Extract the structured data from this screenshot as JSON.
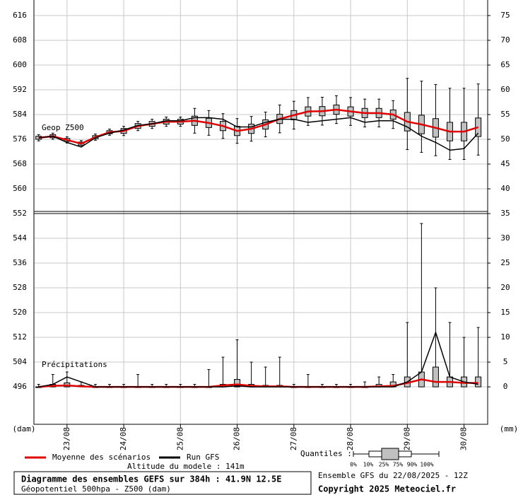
{
  "chart_data": {
    "type": "boxplot",
    "title": "Diagramme des ensembles GEFS sur 384h : 41.9N 12.5E",
    "subtitle": "Géopotentiel 500hpa - Z500 (dam)",
    "run": "Ensemble GFS du 22/08/2025 - 12Z",
    "copyright": "Copyright 2025 Meteociel.fr",
    "altitude": "Altitude du modele : 141m",
    "ylabel": "(dam)",
    "y2label": "(mm)",
    "panel_labels": [
      "Geop Z500",
      "Précipitations"
    ],
    "grid": true,
    "x": [
      0,
      6,
      12,
      18,
      24,
      30,
      36,
      42,
      48,
      54,
      60,
      66,
      72,
      78,
      84,
      90,
      96,
      102,
      108,
      114,
      120,
      126,
      132,
      138,
      144,
      150,
      156,
      162,
      168,
      174,
      180,
      186
    ],
    "xlim": [
      -2,
      190
    ],
    "xticks": [
      {
        "value": 12,
        "label": "23/08"
      },
      {
        "value": 36,
        "label": "24/08"
      },
      {
        "value": 60,
        "label": "25/08"
      },
      {
        "value": 84,
        "label": "26/08"
      },
      {
        "value": 108,
        "label": "27/08"
      },
      {
        "value": 132,
        "label": "28/08"
      },
      {
        "value": 156,
        "label": "29/08"
      },
      {
        "value": 180,
        "label": "30/08"
      }
    ],
    "ylim": [
      483.9,
      621.03
    ],
    "yticks": [
      496,
      504,
      512,
      520,
      528,
      536,
      544,
      552,
      560,
      568,
      576,
      584,
      592,
      600,
      608,
      616
    ],
    "y2lim": [
      -7.56,
      78.14
    ],
    "y2ticks": [
      0,
      5,
      10,
      15,
      20,
      25,
      30,
      35,
      40,
      45,
      50,
      55,
      60,
      65,
      70,
      75
    ],
    "series": [
      {
        "name": "Moyenne des scénarios",
        "color": "#e00000",
        "values": [
          576.5,
          577,
          575.8,
          574.6,
          576.7,
          578.3,
          578.7,
          580.3,
          581,
          581.7,
          581.7,
          582,
          581.3,
          580.3,
          578.7,
          579.4,
          580.8,
          582.6,
          583.8,
          585,
          585.1,
          585.6,
          585,
          584.5,
          584.5,
          584,
          581.7,
          580.8,
          579.7,
          578.5,
          578.5,
          579.9
        ],
        "values_y2": [
          0,
          0.2,
          0.3,
          0.1,
          0,
          0,
          0,
          0,
          0,
          0,
          0,
          0,
          0,
          0.3,
          0.5,
          0.2,
          0.1,
          0.1,
          0,
          0,
          0,
          0,
          0,
          0,
          0.1,
          0.2,
          0.8,
          1.5,
          1,
          1,
          0.8,
          0.8
        ]
      },
      {
        "name": "Run GFS",
        "color": "#000000",
        "values": [
          576.5,
          577,
          575,
          573.5,
          576.5,
          578,
          579,
          580.5,
          581,
          582,
          582,
          583,
          583,
          582.5,
          580,
          580,
          581.5,
          582.5,
          582.5,
          581.5,
          582,
          582.5,
          583,
          581.5,
          582,
          582,
          580,
          577,
          575,
          572.5,
          573,
          578
        ],
        "values_y2": [
          0,
          0.5,
          2,
          1,
          0,
          0,
          0,
          0,
          0,
          0,
          0,
          0,
          0,
          0,
          0.2,
          0,
          0,
          0,
          0,
          0,
          0,
          0,
          0,
          0,
          0,
          0,
          1,
          3,
          11,
          2,
          1,
          0.5
        ]
      }
    ],
    "quantiles": {
      "title": "Quantiles :",
      "labels": [
        "0%",
        "10%",
        "25%",
        "75%",
        "90%",
        "100%"
      ],
      "color": "#c0c0c0",
      "q0": [
        575.5,
        576,
        574.8,
        573.6,
        575.7,
        577.3,
        577.2,
        578.8,
        579.5,
        580.2,
        580.2,
        578,
        577.3,
        576.3,
        574.7,
        575.4,
        576.8,
        578.1,
        579.3,
        580.5,
        580.6,
        581.1,
        580.5,
        580,
        580,
        579.5,
        572.7,
        571.8,
        570.7,
        569.5,
        569.5,
        570.9
      ],
      "q25": [
        576,
        576.5,
        575.3,
        574.1,
        576.2,
        577.8,
        577.9,
        579.5,
        580.2,
        580.9,
        580.9,
        580.5,
        579.8,
        578.8,
        577.2,
        577.9,
        579.3,
        581.1,
        582.3,
        583.5,
        583.6,
        584.1,
        583.5,
        583,
        583,
        582.5,
        578.7,
        577.8,
        576.7,
        575.5,
        575.5,
        576.9
      ],
      "q75": [
        577,
        577.5,
        576.3,
        575.1,
        577.2,
        578.8,
        579.5,
        581.1,
        581.8,
        582.5,
        582.5,
        583.5,
        582.8,
        581.8,
        580.2,
        580.9,
        582.3,
        584.1,
        585.3,
        586.5,
        586.6,
        587.1,
        586.5,
        586,
        586,
        585.5,
        584.7,
        583.8,
        582.7,
        581.5,
        581.5,
        582.9
      ],
      "q100": [
        577.5,
        578,
        576.8,
        575.6,
        577.7,
        579.3,
        580.2,
        581.8,
        582.5,
        583.2,
        583.2,
        586,
        585.3,
        584.3,
        582.7,
        583.4,
        584.8,
        587.1,
        588.3,
        589.5,
        589.6,
        590.1,
        589.5,
        589,
        589,
        588.5,
        595.7,
        594.8,
        593.7,
        592.5,
        592.5,
        593.9
      ],
      "q0_y2": [
        0,
        0,
        0,
        0,
        0,
        0,
        0,
        0,
        0,
        0,
        0,
        0,
        0,
        0,
        0,
        0,
        0,
        0,
        0,
        0,
        0,
        0,
        0,
        0,
        0,
        0,
        0,
        0,
        0,
        0,
        0,
        0
      ],
      "q25_y2": [
        0,
        0,
        0,
        0,
        0,
        0,
        0,
        0,
        0,
        0,
        0,
        0,
        0,
        0,
        0,
        0,
        0,
        0,
        0,
        0,
        0,
        0,
        0,
        0,
        0,
        0,
        0,
        0,
        0,
        0,
        0,
        0
      ],
      "q75_y2": [
        0,
        0.5,
        0.8,
        0.3,
        0,
        0,
        0,
        0,
        0,
        0,
        0,
        0,
        0,
        0.5,
        1.5,
        0.5,
        0.3,
        0.3,
        0,
        0,
        0,
        0,
        0,
        0,
        0.5,
        1,
        2,
        3,
        4,
        2,
        2,
        2
      ],
      "q100_y2": [
        0.5,
        2.5,
        3,
        1,
        0.5,
        0.5,
        0.5,
        2.5,
        0.5,
        0.5,
        0.5,
        0.5,
        3.5,
        6,
        9.5,
        5,
        4,
        6,
        0.5,
        2.5,
        0.5,
        0.5,
        0.5,
        1,
        2,
        2.5,
        13,
        33,
        20,
        13,
        10,
        12
      ]
    }
  }
}
